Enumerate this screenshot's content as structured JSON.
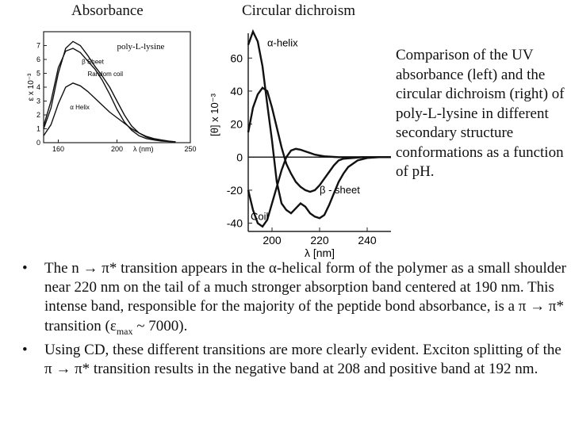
{
  "chart_data": [
    {
      "type": "line",
      "title": "Absorbance",
      "ylabel": "ε x 10⁻³",
      "xlabel": "λ (nm)",
      "xlim": [
        150,
        250
      ],
      "ylim": [
        0,
        8
      ],
      "x_ticks": [
        160,
        200,
        250
      ],
      "x_tick_labels": [
        "160",
        "200",
        "250"
      ],
      "y_ticks": [
        0,
        1,
        2,
        3,
        4,
        5,
        6,
        7
      ],
      "y_tick_labels": [
        "0",
        "1",
        "2",
        "3",
        "4",
        "5",
        "6",
        "7"
      ],
      "legend_text": "poly-L-lysine",
      "series": [
        {
          "name": "β Sheet",
          "x": [
            150,
            155,
            160,
            165,
            170,
            175,
            180,
            185,
            190,
            195,
            200,
            205,
            210,
            215,
            220,
            225,
            230,
            235,
            240
          ],
          "values": [
            1.0,
            2.5,
            5.0,
            6.8,
            7.3,
            7.0,
            6.3,
            5.5,
            4.8,
            4.0,
            3.0,
            2.0,
            1.2,
            0.7,
            0.4,
            0.25,
            0.15,
            0.1,
            0.05
          ]
        },
        {
          "name": "Random coil",
          "x": [
            150,
            155,
            160,
            165,
            170,
            175,
            180,
            185,
            190,
            195,
            200,
            205,
            210,
            215,
            220,
            225,
            230,
            235,
            240
          ],
          "values": [
            1.2,
            3.0,
            5.4,
            6.6,
            6.8,
            6.5,
            5.9,
            5.3,
            4.5,
            3.5,
            2.4,
            1.5,
            0.9,
            0.5,
            0.3,
            0.2,
            0.12,
            0.08,
            0.04
          ]
        },
        {
          "name": "α Helix",
          "x": [
            150,
            155,
            160,
            165,
            170,
            175,
            180,
            185,
            190,
            195,
            200,
            205,
            210,
            215,
            220,
            225,
            230,
            235,
            240
          ],
          "values": [
            0.5,
            1.3,
            2.8,
            4.0,
            4.3,
            4.1,
            3.7,
            3.2,
            2.7,
            2.2,
            1.8,
            1.4,
            1.0,
            0.7,
            0.45,
            0.3,
            0.2,
            0.12,
            0.06
          ]
        }
      ],
      "annotations": [
        "β Sheet",
        "Random coil",
        "α Helix"
      ]
    },
    {
      "type": "line",
      "title": "Circular dichroism",
      "ylabel": "[θ] x 10⁻³",
      "xlabel": "λ [nm]",
      "xlim": [
        190,
        250
      ],
      "ylim": [
        -45,
        75
      ],
      "x_ticks": [
        200,
        220,
        240
      ],
      "x_tick_labels": [
        "200",
        "220",
        "240"
      ],
      "y_ticks": [
        60,
        40,
        20,
        0,
        -20,
        -40
      ],
      "y_tick_labels": [
        "60",
        "40",
        "20",
        "0",
        "-20",
        "-40"
      ],
      "series": [
        {
          "name": "α-helix",
          "x": [
            190,
            192,
            194,
            196,
            198,
            200,
            202,
            204,
            206,
            208,
            210,
            212,
            214,
            216,
            218,
            220,
            222,
            224,
            226,
            228,
            230,
            232,
            236,
            240,
            245,
            250
          ],
          "values": [
            68,
            76,
            70,
            55,
            32,
            10,
            -15,
            -28,
            -32,
            -34,
            -31,
            -28,
            -30,
            -34,
            -36,
            -37,
            -35,
            -29,
            -22,
            -15,
            -10,
            -6,
            -2,
            -0.5,
            0,
            0
          ]
        },
        {
          "name": "β-sheet",
          "x": [
            190,
            192,
            194,
            196,
            198,
            200,
            202,
            204,
            206,
            208,
            210,
            212,
            214,
            216,
            218,
            220,
            222,
            224,
            226,
            228,
            230,
            234,
            238,
            242,
            246,
            250
          ],
          "values": [
            15,
            30,
            38,
            42,
            40,
            30,
            18,
            6,
            -4,
            -10,
            -15,
            -18,
            -20,
            -21,
            -20,
            -17,
            -13,
            -9,
            -5,
            -2,
            -1,
            -0.5,
            0,
            0,
            0,
            0
          ]
        },
        {
          "name": "Coil",
          "x": [
            190,
            192,
            194,
            196,
            198,
            200,
            202,
            204,
            206,
            208,
            210,
            212,
            214,
            216,
            218,
            220,
            222,
            224,
            226,
            228,
            230,
            234,
            238,
            242,
            246,
            250
          ],
          "values": [
            -20,
            -32,
            -40,
            -42,
            -38,
            -28,
            -18,
            -8,
            0,
            4,
            5,
            4.5,
            3.5,
            2.5,
            1.5,
            1,
            0.5,
            0.3,
            0.1,
            0,
            0,
            0,
            0,
            0,
            0,
            0
          ]
        }
      ],
      "annotations": [
        "α-helix",
        "β - sheet",
        "Coil"
      ]
    }
  ],
  "caption": "Comparison of the UV absorbance (left) and the circular dichroism (right) of poly-L-lysine in different secondary structure conformations as a function of pH.",
  "bullets": [
    {
      "parts": [
        {
          "t": "The n → π* transition appears in the α-helical form of the polymer as a small shoulder near 220 nm on the tail of a much stronger absorption band centered at 190 nm.  This intense band, responsible for the majority of the peptide bond absorbance, is a π → π* transition (ε"
        },
        {
          "t": "max",
          "sub": true
        },
        {
          "t": " ~ 7000)."
        }
      ]
    },
    {
      "parts": [
        {
          "t": "Using CD, these different transitions are more clearly evident. Exciton splitting of the π → π* transition results in the negative band at 208 and positive band at 192 nm."
        }
      ]
    }
  ],
  "bullet_symbol": "•"
}
